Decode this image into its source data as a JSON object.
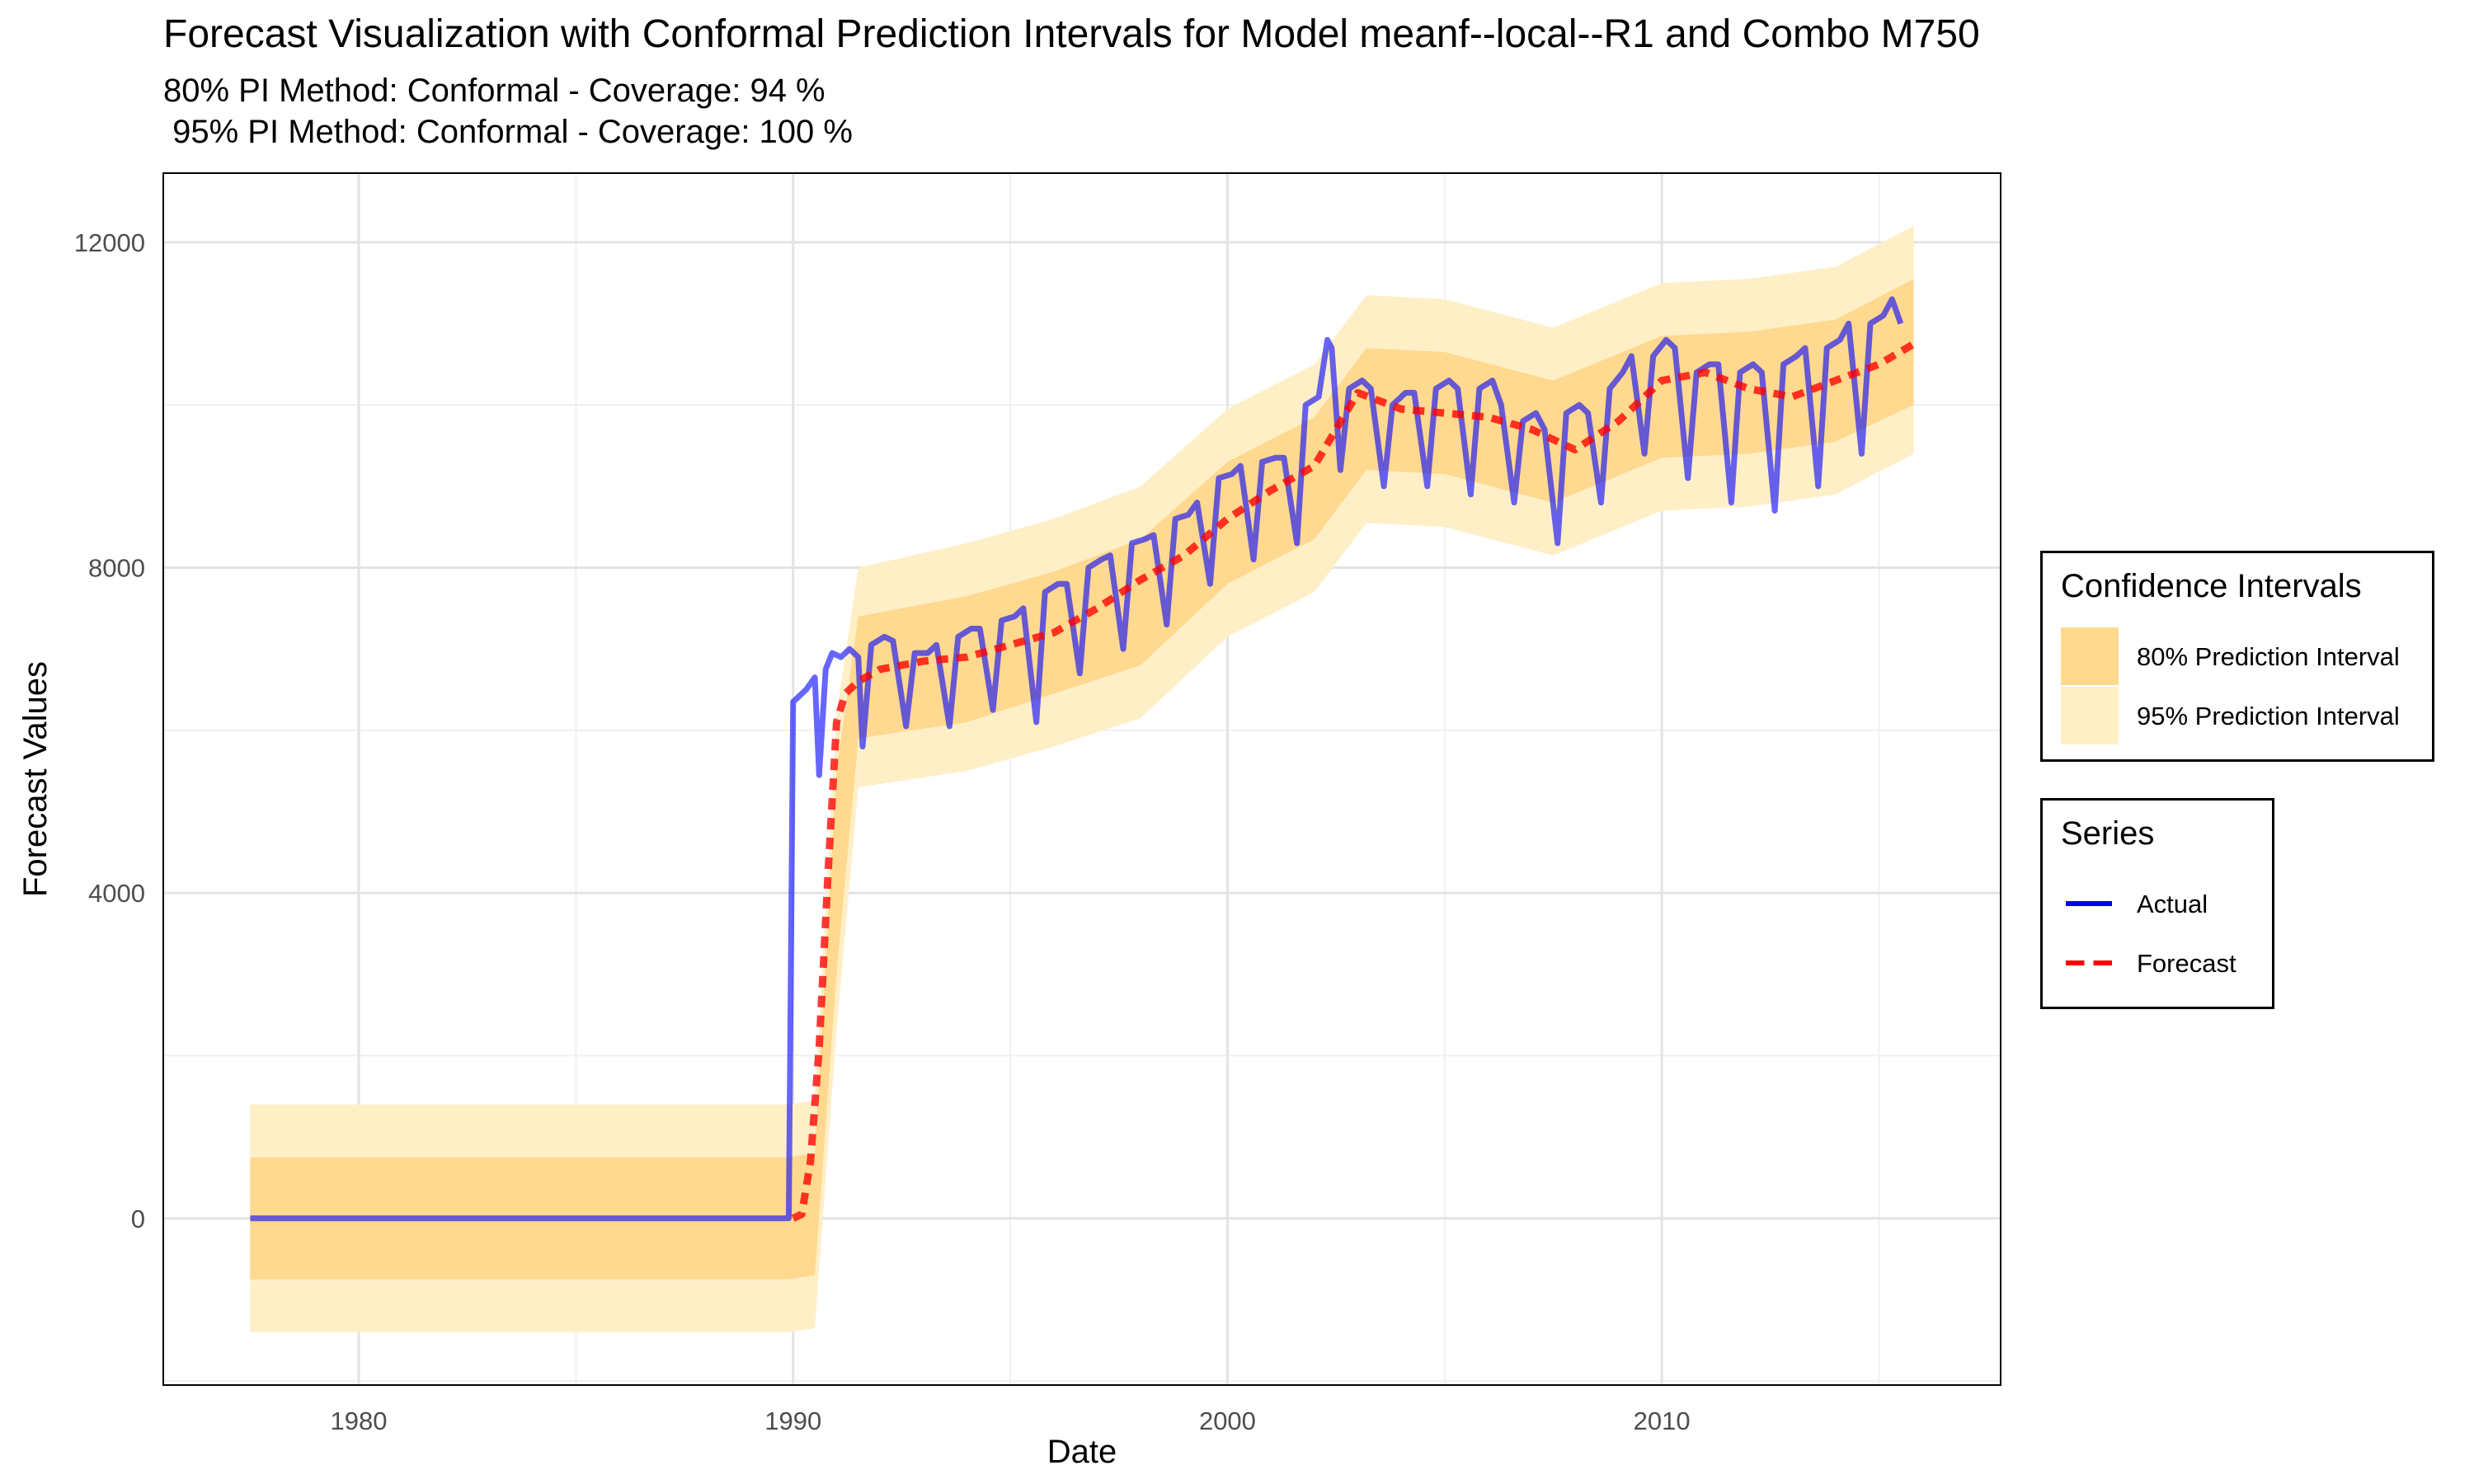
{
  "title": "Forecast Visualization with Conformal Prediction Intervals for Model meanf--local--R1 and Combo M750",
  "subtitle_line1": "80% PI Method: Conformal - Coverage: 94 %",
  "subtitle_line2": " 95% PI Method: Conformal - Coverage: 100 %",
  "legend_ci": {
    "title": "Confidence Intervals",
    "items": [
      {
        "label": "80% Prediction Interval",
        "color": "#FFD98F"
      },
      {
        "label": "95% Prediction Interval",
        "color": "#FFEFC7"
      }
    ]
  },
  "legend_series": {
    "title": "Series",
    "items": [
      {
        "label": "Actual",
        "color": "#0000FF",
        "style": "solid"
      },
      {
        "label": "Forecast",
        "color": "#FF0000",
        "style": "dashed"
      }
    ]
  },
  "chart_data": {
    "type": "line",
    "title": "Forecast Visualization with Conformal Prediction Intervals for Model meanf--local--R1 and Combo M750",
    "xlabel": "Date",
    "ylabel": "Forecast Values",
    "xlim": [
      1975.5,
      2017.8
    ],
    "ylim": [
      -2050,
      12850
    ],
    "x_ticks": [
      1980,
      1990,
      2000,
      2010
    ],
    "y_ticks": [
      0,
      4000,
      8000,
      12000
    ],
    "grid": true,
    "legend_position": "right",
    "series": [
      {
        "name": "Actual",
        "color": "#0000FF",
        "style": "solid",
        "x": [
          1977.5,
          1989.9,
          1990.0,
          1990.3,
          1990.5,
          1990.6,
          1990.75,
          1990.9,
          1991.1,
          1991.3,
          1991.5,
          1991.6,
          1991.8,
          1992.1,
          1992.3,
          1992.6,
          1992.8,
          1993.1,
          1993.3,
          1993.6,
          1993.8,
          1994.1,
          1994.3,
          1994.6,
          1994.8,
          1995.1,
          1995.3,
          1995.6,
          1995.8,
          1996.1,
          1996.3,
          1996.6,
          1996.8,
          1997.1,
          1997.3,
          1997.6,
          1997.8,
          1998.1,
          1998.3,
          1998.6,
          1998.8,
          1999.1,
          1999.3,
          1999.6,
          1999.8,
          2000.1,
          2000.3,
          2000.6,
          2000.8,
          2001.1,
          2001.3,
          2001.6,
          2001.8,
          2002.1,
          2002.3,
          2002.4,
          2002.6,
          2002.8,
          2003.1,
          2003.3,
          2003.6,
          2003.8,
          2004.1,
          2004.3,
          2004.6,
          2004.8,
          2005.1,
          2005.3,
          2005.6,
          2005.8,
          2006.1,
          2006.3,
          2006.6,
          2006.8,
          2007.1,
          2007.3,
          2007.6,
          2007.8,
          2008.1,
          2008.3,
          2008.6,
          2008.8,
          2009.1,
          2009.3,
          2009.6,
          2009.8,
          2010.1,
          2010.3,
          2010.6,
          2010.8,
          2011.1,
          2011.3,
          2011.6,
          2011.8,
          2012.1,
          2012.3,
          2012.6,
          2012.8,
          2013.1,
          2013.3,
          2013.6,
          2013.8,
          2014.1,
          2014.3,
          2014.6,
          2014.8,
          2015.1,
          2015.3,
          2015.5
        ],
        "y": [
          0,
          0,
          6350,
          6500,
          6650,
          5450,
          6750,
          6950,
          6900,
          7000,
          6900,
          5800,
          7050,
          7150,
          7100,
          6050,
          6950,
          6950,
          7050,
          6050,
          7150,
          7250,
          7250,
          6250,
          7350,
          7400,
          7500,
          6100,
          7700,
          7800,
          7800,
          6700,
          8000,
          8100,
          8150,
          7000,
          8300,
          8350,
          8400,
          7300,
          8600,
          8650,
          8800,
          7800,
          9100,
          9150,
          9250,
          8100,
          9300,
          9350,
          9350,
          8300,
          10000,
          10100,
          10800,
          10700,
          9200,
          10200,
          10300,
          10200,
          9000,
          10000,
          10150,
          10150,
          9000,
          10200,
          10300,
          10200,
          8900,
          10200,
          10300,
          10000,
          8800,
          9800,
          9900,
          9700,
          8300,
          9900,
          10000,
          9900,
          8800,
          10200,
          10400,
          10600,
          9400,
          10600,
          10800,
          10700,
          9100,
          10400,
          10500,
          10500,
          8800,
          10400,
          10500,
          10400,
          8700,
          10500,
          10600,
          10700,
          9000,
          10700,
          10800,
          11000,
          9400,
          11000,
          11100,
          11300,
          11000
        ]
      },
      {
        "name": "Forecast",
        "color": "#FF0000",
        "style": "dashed",
        "x": [
          1990.0,
          1990.2,
          1990.4,
          1990.6,
          1990.8,
          1991.0,
          1991.2,
          1991.5,
          1992.0,
          1993.0,
          1994.0,
          1995.0,
          1996.0,
          1997.0,
          1998.0,
          1999.0,
          2000.0,
          2001.0,
          2002.0,
          2003.0,
          2004.0,
          2005.0,
          2006.0,
          2007.0,
          2008.0,
          2009.0,
          2010.0,
          2011.0,
          2012.0,
          2013.0,
          2014.0,
          2015.0,
          2015.8
        ],
        "y": [
          0,
          50,
          700,
          2100,
          4200,
          6100,
          6450,
          6600,
          6750,
          6850,
          6900,
          7050,
          7200,
          7500,
          7850,
          8150,
          8600,
          8950,
          9250,
          10150,
          9950,
          9900,
          9850,
          9700,
          9450,
          9800,
          10300,
          10400,
          10200,
          10100,
          10300,
          10500,
          10750
        ]
      }
    ],
    "intervals": [
      {
        "name": "80% Prediction Interval",
        "color": "#FFD98F",
        "x": [
          1977.5,
          1989.9,
          1990.5,
          1991.0,
          1991.5,
          1994.0,
          1996.0,
          1998.0,
          2000.0,
          2002.0,
          2003.2,
          2005.0,
          2007.5,
          2010.0,
          2012.0,
          2014.0,
          2015.8
        ],
        "lower": [
          -750,
          -750,
          -700,
          3000,
          5900,
          6100,
          6450,
          6800,
          7800,
          8350,
          9200,
          9150,
          8800,
          9350,
          9400,
          9550,
          10000
        ],
        "upper": [
          750,
          750,
          800,
          5500,
          7400,
          7650,
          7950,
          8350,
          9300,
          9850,
          10700,
          10650,
          10300,
          10850,
          10900,
          11050,
          11550
        ]
      },
      {
        "name": "95% Prediction Interval",
        "color": "#FFEFC7",
        "x": [
          1977.5,
          1989.9,
          1990.5,
          1991.0,
          1991.5,
          1994.0,
          1996.0,
          1998.0,
          2000.0,
          2002.0,
          2003.2,
          2005.0,
          2007.5,
          2010.0,
          2012.0,
          2014.0,
          2015.8
        ],
        "lower": [
          -1400,
          -1400,
          -1350,
          2300,
          5300,
          5500,
          5800,
          6150,
          7150,
          7700,
          8550,
          8500,
          8150,
          8700,
          8750,
          8900,
          9400
        ],
        "upper": [
          1400,
          1400,
          1450,
          6200,
          8000,
          8300,
          8600,
          9000,
          9950,
          10500,
          11350,
          11300,
          10950,
          11500,
          11550,
          11700,
          12200
        ]
      }
    ]
  }
}
